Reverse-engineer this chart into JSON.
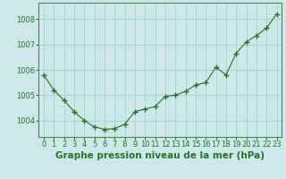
{
  "x": [
    0,
    1,
    2,
    3,
    4,
    5,
    6,
    7,
    8,
    9,
    10,
    11,
    12,
    13,
    14,
    15,
    16,
    17,
    18,
    19,
    20,
    21,
    22,
    23
  ],
  "y": [
    1005.8,
    1005.2,
    1004.8,
    1004.35,
    1004.0,
    1003.75,
    1003.65,
    1003.68,
    1003.85,
    1004.35,
    1004.45,
    1004.55,
    1004.95,
    1005.0,
    1005.15,
    1005.4,
    1005.5,
    1006.1,
    1005.8,
    1006.65,
    1007.1,
    1007.35,
    1007.65,
    1008.2
  ],
  "ylim": [
    1003.35,
    1008.65
  ],
  "yticks": [
    1004,
    1005,
    1006,
    1007,
    1008
  ],
  "xtick_labels": [
    "0",
    "1",
    "2",
    "3",
    "4",
    "5",
    "6",
    "7",
    "8",
    "9",
    "10",
    "11",
    "12",
    "13",
    "14",
    "15",
    "16",
    "17",
    "18",
    "19",
    "20",
    "21",
    "22",
    "23"
  ],
  "xlabel": "Graphe pression niveau de la mer (hPa)",
  "line_color": "#2d6e2d",
  "marker": "+",
  "bg_color": "#cce8e8",
  "grid_color": "#aacece",
  "tick_color": "#2d6e2d",
  "spine_color": "#4d8b4d",
  "xlabel_fontsize": 7.5,
  "tick_fontsize": 6.0,
  "linewidth": 0.8,
  "markersize": 4.5,
  "markeredgewidth": 1.0
}
